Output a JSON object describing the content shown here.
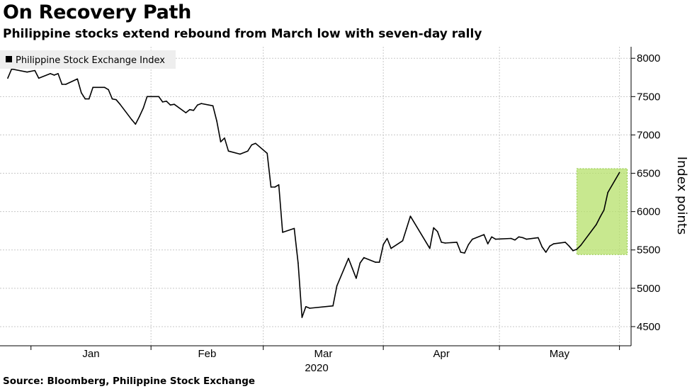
{
  "header": {
    "title": "On Recovery Path",
    "subtitle": "Philippine stocks extend rebound from March low with seven-day rally"
  },
  "footer": {
    "source": "Source: Bloomberg, Philippine Stock Exchange"
  },
  "colors": {
    "line": "#000000",
    "highlight_fill": "#b5e06a",
    "highlight_stroke": "#8cc63f",
    "grid": "#c8c8c8",
    "legend_bg": "#eeeeee"
  },
  "chart_data": {
    "type": "line",
    "title": "On Recovery Path",
    "subtitle": "Philippine stocks extend rebound from March low with seven-day rally",
    "xlabel": "2020",
    "ylabel": "Index points",
    "x_ticks": [
      "Jan",
      "Feb",
      "Mar",
      "Apr",
      "May"
    ],
    "y_ticks": [
      4500,
      5000,
      5500,
      6000,
      6500,
      7000,
      7500,
      8000
    ],
    "ylim": [
      4250,
      8150
    ],
    "grid": true,
    "legend_position": "top-left",
    "series": [
      {
        "name": "Philippine Stock Exchange Index",
        "x": [
          "2019-12-26",
          "2019-12-27",
          "2019-12-31",
          "2020-01-02",
          "2020-01-03",
          "2020-01-06",
          "2020-01-07",
          "2020-01-08",
          "2020-01-09",
          "2020-01-10",
          "2020-01-13",
          "2020-01-14",
          "2020-01-15",
          "2020-01-16",
          "2020-01-17",
          "2020-01-20",
          "2020-01-21",
          "2020-01-22",
          "2020-01-23",
          "2020-01-24",
          "2020-01-27",
          "2020-01-28",
          "2020-01-29",
          "2020-01-30",
          "2020-01-31",
          "2020-02-03",
          "2020-02-04",
          "2020-02-05",
          "2020-02-06",
          "2020-02-07",
          "2020-02-10",
          "2020-02-11",
          "2020-02-12",
          "2020-02-13",
          "2020-02-14",
          "2020-02-17",
          "2020-02-18",
          "2020-02-19",
          "2020-02-20",
          "2020-02-21",
          "2020-02-24",
          "2020-02-26",
          "2020-02-27",
          "2020-02-28",
          "2020-03-02",
          "2020-03-03",
          "2020-03-04",
          "2020-03-05",
          "2020-03-06",
          "2020-03-09",
          "2020-03-10",
          "2020-03-11",
          "2020-03-12",
          "2020-03-13",
          "2020-03-19",
          "2020-03-20",
          "2020-03-23",
          "2020-03-24",
          "2020-03-25",
          "2020-03-26",
          "2020-03-27",
          "2020-03-30",
          "2020-03-31",
          "2020-04-01",
          "2020-04-02",
          "2020-04-03",
          "2020-04-06",
          "2020-04-07",
          "2020-04-08",
          "2020-04-13",
          "2020-04-14",
          "2020-04-15",
          "2020-04-16",
          "2020-04-17",
          "2020-04-20",
          "2020-04-21",
          "2020-04-22",
          "2020-04-23",
          "2020-04-24",
          "2020-04-27",
          "2020-04-28",
          "2020-04-29",
          "2020-04-30",
          "2020-05-04",
          "2020-05-05",
          "2020-05-06",
          "2020-05-07",
          "2020-05-08",
          "2020-05-11",
          "2020-05-12",
          "2020-05-13",
          "2020-05-14",
          "2020-05-15",
          "2020-05-18",
          "2020-05-19",
          "2020-05-20",
          "2020-05-21",
          "2020-05-22",
          "2020-05-26",
          "2020-05-27",
          "2020-05-28",
          "2020-05-29",
          "2020-06-01"
        ],
        "values": [
          7740,
          7860,
          7820,
          7840,
          7740,
          7800,
          7780,
          7800,
          7660,
          7660,
          7730,
          7550,
          7470,
          7470,
          7620,
          7620,
          7590,
          7470,
          7460,
          7400,
          7200,
          7140,
          7240,
          7350,
          7500,
          7500,
          7430,
          7440,
          7390,
          7400,
          7290,
          7330,
          7320,
          7390,
          7410,
          7380,
          7180,
          6910,
          6960,
          6790,
          6750,
          6790,
          6870,
          6890,
          6760,
          6320,
          6320,
          6350,
          5730,
          5780,
          5330,
          4620,
          4760,
          4740,
          4770,
          5030,
          5390,
          5260,
          5130,
          5330,
          5400,
          5340,
          5340,
          5570,
          5650,
          5520,
          5620,
          5780,
          5940,
          5520,
          5790,
          5740,
          5600,
          5590,
          5600,
          5470,
          5460,
          5570,
          5640,
          5700,
          5580,
          5670,
          5640,
          5650,
          5630,
          5670,
          5660,
          5640,
          5660,
          5540,
          5470,
          5550,
          5580,
          5600,
          5550,
          5490,
          5510,
          5560,
          5830,
          5930,
          6020,
          6250,
          6510
        ]
      }
    ],
    "annotations": [
      {
        "type": "highlight-box",
        "label": "seven-day rally",
        "x_start": "2020-05-21",
        "x_end": "2020-06-03",
        "y_start": 5440,
        "y_end": 6560
      }
    ]
  }
}
